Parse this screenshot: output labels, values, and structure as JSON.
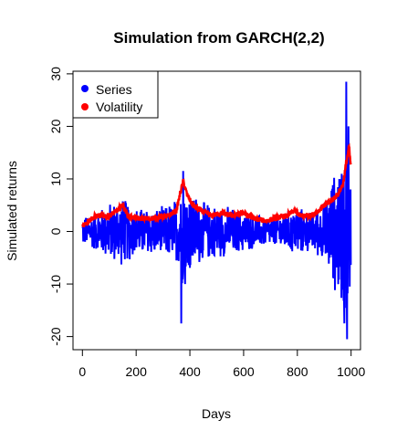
{
  "chart_data": {
    "type": "line",
    "title": "Simulation from GARCH(2,2)",
    "xlabel": "Days",
    "ylabel": "Simulated returns",
    "xlim": [
      -35,
      1035
    ],
    "ylim": [
      -22.5,
      30.5
    ],
    "x_ticks": [
      0,
      200,
      400,
      600,
      800,
      1000
    ],
    "x_tick_labels": [
      "0",
      "200",
      "400",
      "600",
      "800",
      "1000"
    ],
    "y_ticks": [
      -20,
      -10,
      0,
      10,
      20,
      30
    ],
    "y_tick_labels": [
      "-20",
      "-10",
      "0",
      "10",
      "20",
      "30"
    ],
    "grid": false,
    "legend_position": "top-left",
    "n_points": 1000,
    "series": [
      {
        "name": "Series",
        "color": "#0000FF",
        "approx": "zero-mean returns, |r| up to envelope; extremes listed",
        "envelope": [
          [
            0,
            3
          ],
          [
            50,
            4
          ],
          [
            100,
            6
          ],
          [
            150,
            7
          ],
          [
            200,
            5
          ],
          [
            300,
            5
          ],
          [
            350,
            7
          ],
          [
            370,
            11
          ],
          [
            400,
            9
          ],
          [
            450,
            6
          ],
          [
            550,
            5
          ],
          [
            650,
            3.5
          ],
          [
            700,
            3
          ],
          [
            800,
            5
          ],
          [
            850,
            4
          ],
          [
            900,
            6
          ],
          [
            930,
            11
          ],
          [
            960,
            15
          ],
          [
            985,
            19
          ],
          [
            1000,
            12
          ]
        ],
        "extremes": [
          [
            368,
            -17.5
          ],
          [
            375,
            11.5
          ],
          [
            382,
            -10
          ],
          [
            975,
            -17.5
          ],
          [
            982,
            28.5
          ],
          [
            985,
            -20.5
          ],
          [
            990,
            20
          ],
          [
            995,
            -10.5
          ]
        ]
      },
      {
        "name": "Volatility",
        "color": "#FF0000",
        "knots": [
          [
            0,
            1
          ],
          [
            20,
            2
          ],
          [
            50,
            3
          ],
          [
            100,
            3
          ],
          [
            130,
            4
          ],
          [
            150,
            5
          ],
          [
            170,
            3
          ],
          [
            200,
            2.5
          ],
          [
            260,
            2.5
          ],
          [
            320,
            3
          ],
          [
            350,
            4
          ],
          [
            365,
            7.5
          ],
          [
            375,
            9.5
          ],
          [
            390,
            7
          ],
          [
            410,
            5
          ],
          [
            440,
            4
          ],
          [
            480,
            3
          ],
          [
            520,
            3.5
          ],
          [
            560,
            3
          ],
          [
            600,
            3.5
          ],
          [
            640,
            2.5
          ],
          [
            680,
            2
          ],
          [
            720,
            2.5
          ],
          [
            760,
            3
          ],
          [
            790,
            4
          ],
          [
            810,
            3
          ],
          [
            850,
            3
          ],
          [
            880,
            4
          ],
          [
            900,
            5
          ],
          [
            930,
            6
          ],
          [
            950,
            7
          ],
          [
            970,
            9
          ],
          [
            985,
            14
          ],
          [
            992,
            16
          ],
          [
            1000,
            12
          ]
        ]
      }
    ]
  }
}
